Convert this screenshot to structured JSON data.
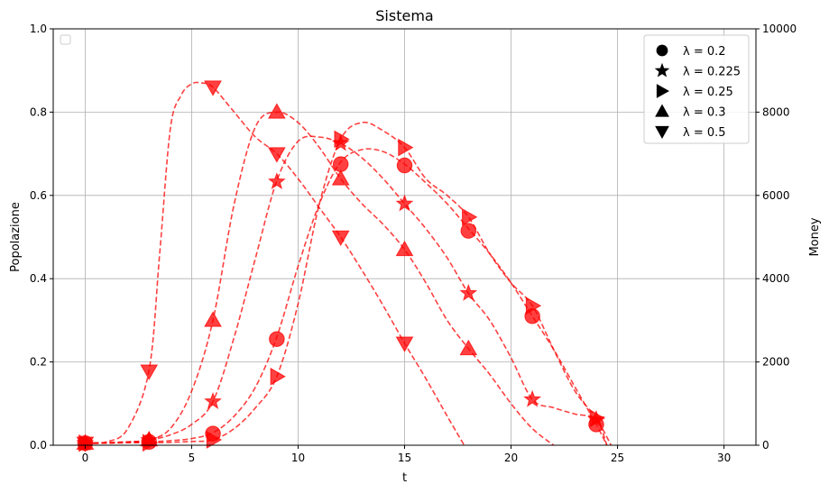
{
  "chart_data": {
    "type": "line",
    "title": "Sistema",
    "xlabel": "t",
    "ylabel": "Popolazione",
    "y2label": "Money",
    "xlim": [
      -1.5,
      31.5
    ],
    "ylim": [
      0,
      1.0
    ],
    "y2lim": [
      0,
      10000
    ],
    "xticks": [
      0,
      5,
      10,
      15,
      20,
      25,
      30
    ],
    "yticks": [
      0.0,
      0.2,
      0.4,
      0.6,
      0.8,
      1.0
    ],
    "y2ticks": [
      0,
      2000,
      4000,
      6000,
      8000,
      10000
    ],
    "grid": true,
    "line_color": "#ff0000",
    "line_style": "dashed",
    "legend_placement": "upper right",
    "legend_left_placement": "upper left",
    "series": [
      {
        "name": "λ = 0.2",
        "marker": "circle",
        "x": [
          0,
          1,
          2,
          3,
          4,
          5,
          6,
          7,
          8,
          9,
          10,
          11,
          12,
          13,
          14,
          15,
          16,
          17,
          18,
          19,
          20,
          21,
          22,
          23,
          24,
          24.5
        ],
        "y": [
          0.005,
          0.006,
          0.007,
          0.008,
          0.011,
          0.016,
          0.03,
          0.07,
          0.14,
          0.26,
          0.43,
          0.58,
          0.68,
          0.71,
          0.705,
          0.675,
          0.63,
          0.58,
          0.52,
          0.46,
          0.39,
          0.31,
          0.23,
          0.14,
          0.05,
          0.0
        ],
        "marker_x": [
          0,
          3,
          6,
          9,
          12,
          15,
          18,
          21,
          24
        ],
        "marker_y": [
          0.005,
          0.008,
          0.028,
          0.255,
          0.675,
          0.672,
          0.515,
          0.31,
          0.05
        ]
      },
      {
        "name": "λ = 0.225",
        "marker": "star",
        "x": [
          0,
          1,
          2,
          3,
          4,
          5,
          6,
          7,
          8,
          9,
          10,
          11,
          12,
          13,
          14,
          15,
          16,
          17,
          18,
          19,
          20,
          21,
          22,
          23,
          24,
          24.5
        ],
        "y": [
          0.005,
          0.006,
          0.008,
          0.012,
          0.025,
          0.05,
          0.105,
          0.26,
          0.45,
          0.635,
          0.73,
          0.74,
          0.725,
          0.69,
          0.64,
          0.58,
          0.52,
          0.45,
          0.365,
          0.3,
          0.21,
          0.11,
          0.09,
          0.075,
          0.062,
          0.0
        ],
        "marker_x": [
          0,
          3,
          6,
          9,
          12,
          15,
          18,
          21,
          24
        ],
        "marker_y": [
          0.005,
          0.012,
          0.105,
          0.633,
          0.725,
          0.58,
          0.365,
          0.11,
          0.062
        ]
      },
      {
        "name": "λ = 0.25",
        "marker": "triangle-right",
        "x": [
          0,
          1,
          2,
          3,
          4,
          5,
          6,
          7,
          8,
          9,
          10,
          11,
          12,
          13,
          14,
          15,
          16,
          17,
          18,
          19,
          20,
          21,
          22,
          23,
          24,
          24.7
        ],
        "y": [
          0.005,
          0.005,
          0.006,
          0.006,
          0.007,
          0.009,
          0.013,
          0.04,
          0.09,
          0.165,
          0.34,
          0.58,
          0.735,
          0.775,
          0.755,
          0.715,
          0.64,
          0.6,
          0.548,
          0.46,
          0.39,
          0.335,
          0.23,
          0.13,
          0.065,
          0.0
        ],
        "marker_x": [
          0,
          3,
          6,
          9,
          12,
          15,
          18,
          21,
          24
        ],
        "marker_y": [
          0.005,
          0.006,
          0.013,
          0.165,
          0.735,
          0.715,
          0.548,
          0.335,
          0.065
        ]
      },
      {
        "name": "λ = 0.3",
        "marker": "triangle-up",
        "x": [
          0,
          1,
          2,
          3,
          4,
          5,
          6,
          7,
          8,
          9,
          10,
          11,
          12,
          13,
          14,
          15,
          16,
          17,
          18,
          19,
          20,
          21,
          22
        ],
        "y": [
          0.005,
          0.006,
          0.008,
          0.013,
          0.04,
          0.13,
          0.3,
          0.58,
          0.765,
          0.8,
          0.775,
          0.715,
          0.64,
          0.58,
          0.53,
          0.47,
          0.39,
          0.3,
          0.232,
          0.17,
          0.1,
          0.04,
          0.0
        ],
        "marker_x": [
          0,
          3,
          6,
          9,
          12,
          15,
          18
        ],
        "marker_y": [
          0.005,
          0.013,
          0.3,
          0.8,
          0.64,
          0.47,
          0.232
        ]
      },
      {
        "name": "λ = 0.5",
        "marker": "triangle-down",
        "x": [
          0,
          1,
          2,
          3,
          3.5,
          4,
          4.5,
          5,
          5.5,
          6,
          7,
          8,
          9,
          10,
          11,
          12,
          13,
          14,
          15,
          16,
          17,
          17.8
        ],
        "y": [
          0.005,
          0.008,
          0.04,
          0.18,
          0.46,
          0.76,
          0.84,
          0.868,
          0.87,
          0.86,
          0.8,
          0.74,
          0.7,
          0.64,
          0.57,
          0.5,
          0.42,
          0.335,
          0.245,
          0.16,
          0.07,
          0.0
        ],
        "marker_x": [
          0,
          3,
          6,
          9,
          12,
          15
        ],
        "marker_y": [
          0.005,
          0.178,
          0.86,
          0.7,
          0.5,
          0.245
        ]
      }
    ]
  }
}
